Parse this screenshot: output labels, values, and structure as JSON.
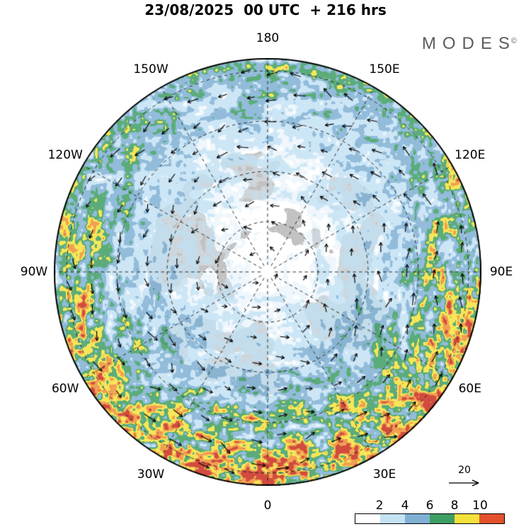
{
  "header": {
    "title": "23/08/2025  00 UTC  + 216 hrs",
    "brand": "MODES",
    "brand_sup": "©"
  },
  "chart_data": {
    "type": "heatmap",
    "subtype": "north-polar-stereographic filled-contour map with wind vectors",
    "title": "23/08/2025 00 UTC + 216 hrs",
    "description": "Northern Hemisphere polar stereographic chart: filled contours of field magnitude (white through blue, green, yellow, orange, red), black wind vector arrows, gray land shading, dashed latitude/longitude graticule every 30 degrees of longitude.",
    "longitude_labels": [
      {
        "label": "0",
        "deg": 0
      },
      {
        "label": "30E",
        "deg": 30
      },
      {
        "label": "60E",
        "deg": 60
      },
      {
        "label": "90E",
        "deg": 90
      },
      {
        "label": "120E",
        "deg": 120
      },
      {
        "label": "150E",
        "deg": 150
      },
      {
        "label": "180",
        "deg": 180
      },
      {
        "label": "150W",
        "deg": -150
      },
      {
        "label": "120W",
        "deg": -120
      },
      {
        "label": "90W",
        "deg": -90
      },
      {
        "label": "60W",
        "deg": -60
      },
      {
        "label": "30W",
        "deg": -30
      }
    ],
    "colorbar": {
      "orientation": "horizontal",
      "tick_labels": [
        "2",
        "4",
        "6",
        "8",
        "10"
      ],
      "segment_colors": [
        "#ffffff",
        "#c3e2f4",
        "#7fb0d4",
        "#3e9d63",
        "#f4e13b",
        "#e2512c"
      ]
    },
    "reference_vector": {
      "label": "20"
    },
    "grid": {
      "meridian_step_deg": 30,
      "parallel_fractions": [
        0.235,
        0.47,
        0.705,
        0.94
      ],
      "dashed": true
    },
    "land_color": "#c2c2c2",
    "palette_map": [
      "#ffffff",
      "#dceef9",
      "#c3e2f4",
      "#7fb0d4",
      "#3e9d63",
      "#f4e13b",
      "#ee8f33",
      "#c92c1c"
    ],
    "thresholds": [
      1.2,
      2,
      4,
      6,
      8,
      10,
      12
    ]
  }
}
